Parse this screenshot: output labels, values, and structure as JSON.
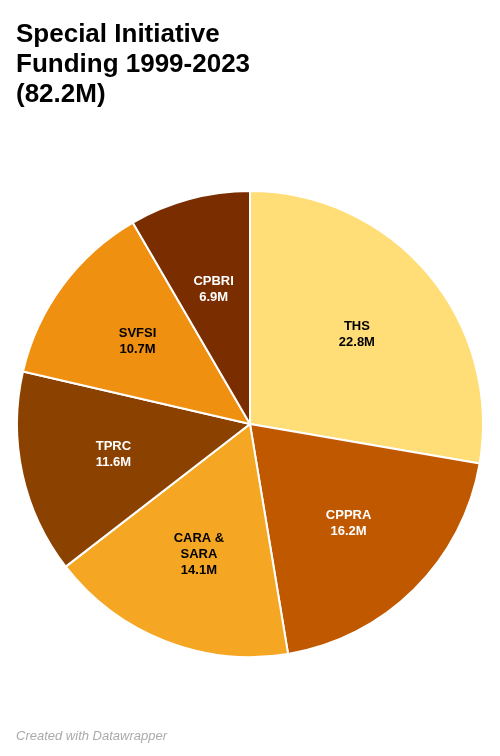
{
  "chart_data": {
    "type": "pie",
    "title": "Special Initiative\nFunding 1999-2023\n(82.2M)",
    "categories": [
      "THS",
      "CPPRA",
      "CARA &\nSARA",
      "TPRC",
      "SVFSI",
      "CPBRI"
    ],
    "values": [
      22.8,
      16.2,
      14.1,
      11.6,
      10.7,
      6.9
    ],
    "value_labels": [
      "22.8M",
      "16.2M",
      "14.1M",
      "11.6M",
      "10.7M",
      "6.9M"
    ],
    "colors": [
      "#FFDD77",
      "#C05800",
      "#F5A623",
      "#8B4200",
      "#F09010",
      "#7A2E00"
    ],
    "data_labels": true,
    "annotations": [
      "Created with Datawrapper"
    ]
  }
}
